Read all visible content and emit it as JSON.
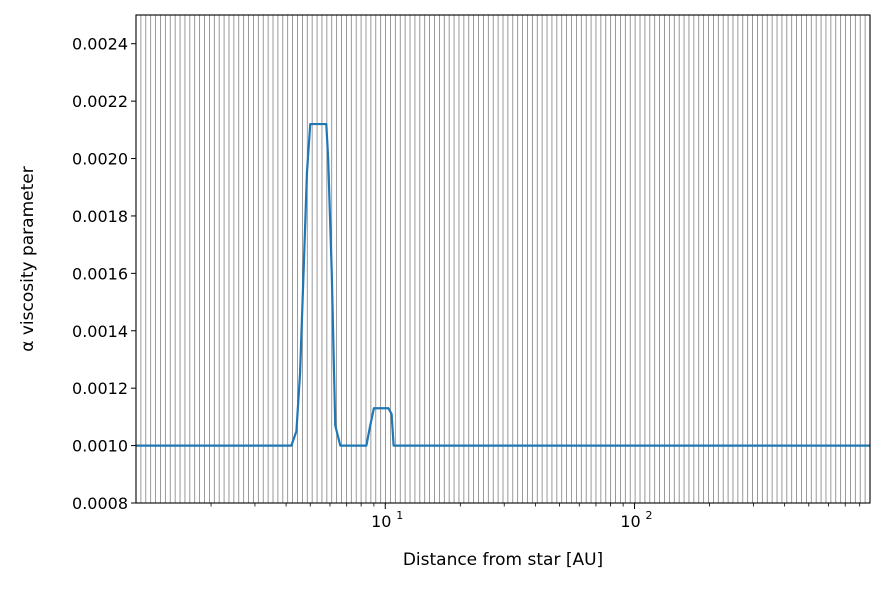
{
  "chart_data": {
    "type": "line",
    "title": "",
    "xlabel": "Distance from star [AU]",
    "ylabel": "α viscosity parameter",
    "xscale": "log",
    "yscale": "linear",
    "xlim": [
      1.0,
      880
    ],
    "ylim": [
      0.0008,
      0.0025
    ],
    "grid": "vertical lines at simulation radial cells",
    "legend": "none",
    "x_ticks": [
      {
        "value": 10,
        "base": "10",
        "exp": "1"
      },
      {
        "value": 100,
        "base": "10",
        "exp": "2"
      }
    ],
    "y_ticks": [
      {
        "value": 0.0008,
        "label": "0.0008"
      },
      {
        "value": 0.001,
        "label": "0.0010"
      },
      {
        "value": 0.0012,
        "label": "0.0012"
      },
      {
        "value": 0.0014,
        "label": "0.0014"
      },
      {
        "value": 0.0016,
        "label": "0.0016"
      },
      {
        "value": 0.0018,
        "label": "0.0018"
      },
      {
        "value": 0.002,
        "label": "0.0020"
      },
      {
        "value": 0.0022,
        "label": "0.0022"
      },
      {
        "value": 0.0024,
        "label": "0.0024"
      }
    ],
    "colors": {
      "line": "#1f77b4",
      "grid": "#808080",
      "axes": "#000000"
    },
    "series": [
      {
        "name": "",
        "x": [
          1.0,
          4.2,
          4.4,
          4.55,
          4.7,
          4.85,
          5.0,
          5.8,
          5.9,
          6.1,
          6.3,
          6.6,
          8.4,
          8.7,
          9.0,
          10.3,
          10.6,
          10.8,
          880
        ],
        "y": [
          0.001,
          0.001,
          0.00105,
          0.00125,
          0.0016,
          0.00195,
          0.00212,
          0.00212,
          0.002,
          0.0016,
          0.00107,
          0.001,
          0.001,
          0.00107,
          0.00113,
          0.00113,
          0.00111,
          0.001,
          0.001
        ]
      }
    ]
  }
}
